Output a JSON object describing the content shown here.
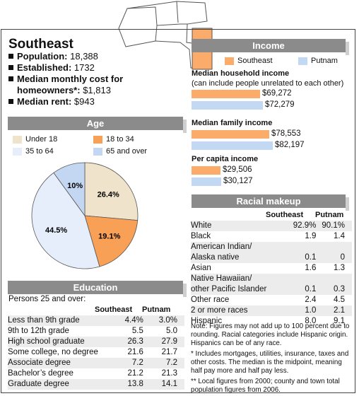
{
  "region": {
    "name": "Southeast",
    "facts": [
      {
        "label": "Population:",
        "value": "18,388"
      },
      {
        "label": "Established:",
        "value": "1732"
      },
      {
        "label": "Median monthly cost for homeowners*:",
        "value": "$1,813"
      },
      {
        "label": "Median rent:",
        "value": "$943"
      }
    ]
  },
  "colors": {
    "southeast": "#fbac6b",
    "putnam": "#c3d8f3",
    "under18": "#efe3cb",
    "age18_34": "#f8a056",
    "age35_64": "#e6eefb",
    "age65": "#c4d7f2",
    "header": "#8b8b8b"
  },
  "age": {
    "heading": "Age",
    "legend": [
      "Under 18",
      "18 to 34",
      "35 to 64",
      "65 and over"
    ]
  },
  "income": {
    "heading": "Income",
    "legend": [
      "Southeast",
      "Putnam"
    ],
    "groups": [
      {
        "title": "Median household income",
        "subtitle": "(can include people unrelated to each other)",
        "labels": [
          "$69,272",
          "$72,279"
        ]
      },
      {
        "title": "Median family income",
        "subtitle": "",
        "labels": [
          "$78,553",
          "$82,197"
        ]
      },
      {
        "title": "Per capita income",
        "subtitle": "",
        "labels": [
          "$29,506",
          "$30,127"
        ]
      }
    ]
  },
  "education": {
    "heading": "Education",
    "subheading": "Persons 25 and over:",
    "columns": [
      "Southeast",
      "Putnam"
    ],
    "rows": [
      {
        "label": "Less than 9th grade",
        "southeast": "4.4%",
        "putnam": "3.0%"
      },
      {
        "label": "9th to 12th grade",
        "southeast": "5.5",
        "putnam": "5.0"
      },
      {
        "label": "High school graduate",
        "southeast": "26.3",
        "putnam": "27.9"
      },
      {
        "label": "Some college, no degree",
        "southeast": "21.6",
        "putnam": "21.7"
      },
      {
        "label": "Associate degree",
        "southeast": "7.2",
        "putnam": "7.2"
      },
      {
        "label": "Bachelor’s degree",
        "southeast": "21.2",
        "putnam": "21.3"
      },
      {
        "label": "Graduate degree",
        "southeast": "13.8",
        "putnam": "14.1"
      }
    ]
  },
  "race": {
    "heading": "Racial makeup",
    "columns": [
      "Southeast",
      "Putnam"
    ],
    "rows": [
      {
        "label": "White",
        "southeast": "92.9%",
        "putnam": "90.1%"
      },
      {
        "label": "Black",
        "southeast": "1.9",
        "putnam": "1.4"
      },
      {
        "label": "American Indian/",
        "label2": "Alaska native",
        "southeast": "0.1",
        "putnam": "0"
      },
      {
        "label": "Asian",
        "southeast": "1.6",
        "putnam": "1.3"
      },
      {
        "label": "Native Hawaiian/",
        "label2": "other Pacific Islander",
        "southeast": "0.1",
        "putnam": "0.3"
      },
      {
        "label": "Other race",
        "southeast": "2.4",
        "putnam": "4.5"
      },
      {
        "label": "2 or more races",
        "southeast": "1.0",
        "putnam": "2.1"
      },
      {
        "label": "Hispanic",
        "southeast": "8.0",
        "putnam": "9.1"
      }
    ]
  },
  "notes": [
    "Note: Figures may not add up to 100 percent due to rounding. Racial categories include Hispanic origin. Hispanics can be of any race.",
    "* Includes mortgages, utilities, insurance, taxes and other costs. The median is the midpoint, meaning half pay more and half pay less.",
    "** Local figures from 2000; county and town total population figures from 2006."
  ],
  "chart_data": [
    {
      "type": "pie",
      "title": "Age",
      "categories": [
        "Under 18",
        "18 to 34",
        "35 to 64",
        "65 and over"
      ],
      "values": [
        26.4,
        19.1,
        44.5,
        10
      ],
      "labels": [
        "26.4%",
        "19.1%",
        "44.5%",
        "10%"
      ]
    },
    {
      "type": "bar",
      "title": "Income",
      "categories": [
        "Median household income",
        "Median family income",
        "Per capita income"
      ],
      "series": [
        {
          "name": "Southeast",
          "values": [
            69272,
            78553,
            29506
          ]
        },
        {
          "name": "Putnam",
          "values": [
            72279,
            82197,
            30127
          ]
        }
      ]
    }
  ]
}
